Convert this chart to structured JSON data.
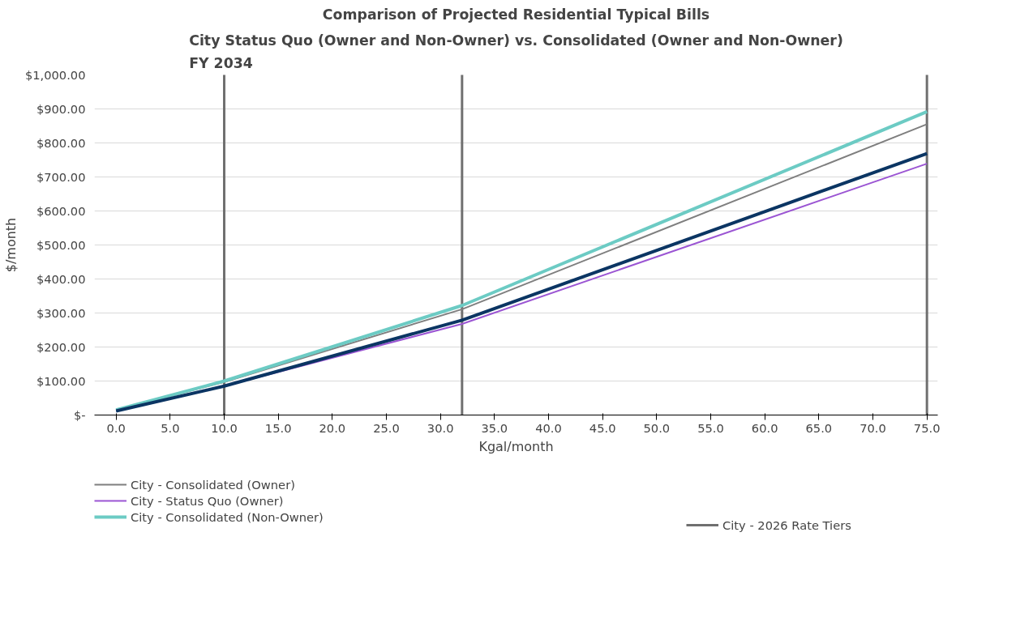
{
  "chart_data": {
    "type": "line",
    "title": "Comparison of Projected Residential Typical Bills",
    "subtitle": "City Status Quo (Owner and Non-Owner) vs. Consolidated (Owner and Non-Owner)\nFY 2034",
    "xlabel": "Kgal/month",
    "ylabel": "$/month",
    "x": [
      0,
      10,
      32,
      75
    ],
    "series": [
      {
        "name": "City - Consolidated (Owner)",
        "color": "#7f7f7f",
        "values": [
          15,
          97,
          311,
          855
        ]
      },
      {
        "name": "City - Status Quo (Owner)",
        "color": "#9b55d3",
        "values": [
          12,
          85,
          268,
          739
        ]
      },
      {
        "name": "City - Consolidated (Non-Owner)",
        "color": "#6ccbc4",
        "values": [
          15,
          100,
          322,
          892
        ]
      },
      {
        "color": "#0b3563",
        "values": [
          12,
          85,
          279,
          769
        ]
      }
    ],
    "xlim": [
      -2,
      76
    ],
    "xticks": [
      {
        "value": 0,
        "label": "0.0"
      },
      {
        "value": 5,
        "label": "5.0"
      },
      {
        "value": 10,
        "label": "10.0"
      },
      {
        "value": 15,
        "label": "15.0"
      },
      {
        "value": 20,
        "label": "20.0"
      },
      {
        "value": 25,
        "label": "25.0"
      },
      {
        "value": 30,
        "label": "30.0"
      },
      {
        "value": 35,
        "label": "35.0"
      },
      {
        "value": 40,
        "label": "40.0"
      },
      {
        "value": 45,
        "label": "45.0"
      },
      {
        "value": 50,
        "label": "50.0"
      },
      {
        "value": 55,
        "label": "55.0"
      },
      {
        "value": 60,
        "label": "60.0"
      },
      {
        "value": 65,
        "label": "65.0"
      },
      {
        "value": 70,
        "label": "70.0"
      },
      {
        "value": 75,
        "label": "75.0"
      }
    ],
    "ylim": [
      0,
      1000
    ],
    "yticks": [
      {
        "value": 0,
        "label": "$-"
      },
      {
        "value": 100,
        "label": "$100.00"
      },
      {
        "value": 200,
        "label": "$200.00"
      },
      {
        "value": 300,
        "label": "$300.00"
      },
      {
        "value": 400,
        "label": "$400.00"
      },
      {
        "value": 500,
        "label": "$500.00"
      },
      {
        "value": 600,
        "label": "$600.00"
      },
      {
        "value": 700,
        "label": "$700.00"
      },
      {
        "value": 800,
        "label": "$800.00"
      },
      {
        "value": 900,
        "label": "$900.00"
      },
      {
        "value": 1000,
        "label": "$1,000.00"
      }
    ],
    "ref_lines": [
      {
        "axis": "x",
        "value": 10,
        "label": "City - 2026 Rate Tiers",
        "color": "#707070"
      },
      {
        "axis": "x",
        "value": 32,
        "color": "#707070"
      },
      {
        "axis": "x",
        "value": 75,
        "color": "#707070"
      }
    ],
    "grid": "y",
    "legend": "bottom",
    "marker": "none",
    "line_style": "solid"
  }
}
